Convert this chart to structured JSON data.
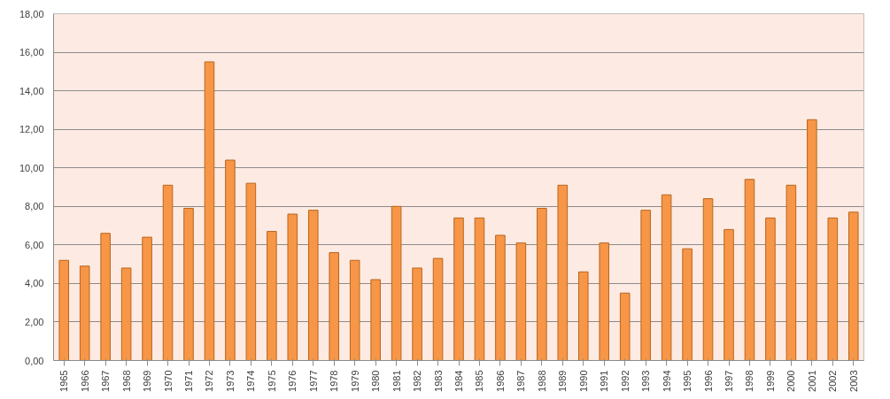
{
  "chart_data": {
    "type": "bar",
    "categories": [
      "1965",
      "1966",
      "1967",
      "1968",
      "1969",
      "1970",
      "1971",
      "1972",
      "1973",
      "1974",
      "1975",
      "1976",
      "1977",
      "1978",
      "1979",
      "1980",
      "1981",
      "1982",
      "1983",
      "1984",
      "1985",
      "1986",
      "1987",
      "1988",
      "1989",
      "1990",
      "1991",
      "1992",
      "1993",
      "1994",
      "1995",
      "1996",
      "1997",
      "1998",
      "1999",
      "2000",
      "2001",
      "2002",
      "2003"
    ],
    "series": [
      {
        "color": "#f79646",
        "values": [
          5.2,
          4.9,
          6.6,
          4.8,
          6.4,
          9.1,
          7.9,
          15.5,
          10.4,
          9.2,
          6.7,
          7.6,
          7.8,
          5.6,
          5.2,
          4.2,
          8.0,
          4.8,
          5.3,
          7.4,
          7.4,
          6.5,
          6.1,
          7.9,
          9.1,
          4.6,
          6.1,
          3.5,
          7.8,
          8.6,
          5.8,
          8.4,
          6.8,
          9.4,
          7.4,
          9.1,
          12.5,
          7.4,
          7.7
        ]
      }
    ],
    "ylim": [
      0,
      18
    ],
    "yticks": [
      {
        "value": 0,
        "label": "0,00"
      },
      {
        "value": 2,
        "label": "2,00"
      },
      {
        "value": 4,
        "label": "4,00"
      },
      {
        "value": 6,
        "label": "6,00"
      },
      {
        "value": 8,
        "label": "8,00"
      },
      {
        "value": 10,
        "label": "10,00"
      },
      {
        "value": 12,
        "label": "12,00"
      },
      {
        "value": 14,
        "label": "14,00"
      },
      {
        "value": 16,
        "label": "16,00"
      },
      {
        "value": 18,
        "label": "18,00"
      }
    ],
    "grid": "y"
  }
}
